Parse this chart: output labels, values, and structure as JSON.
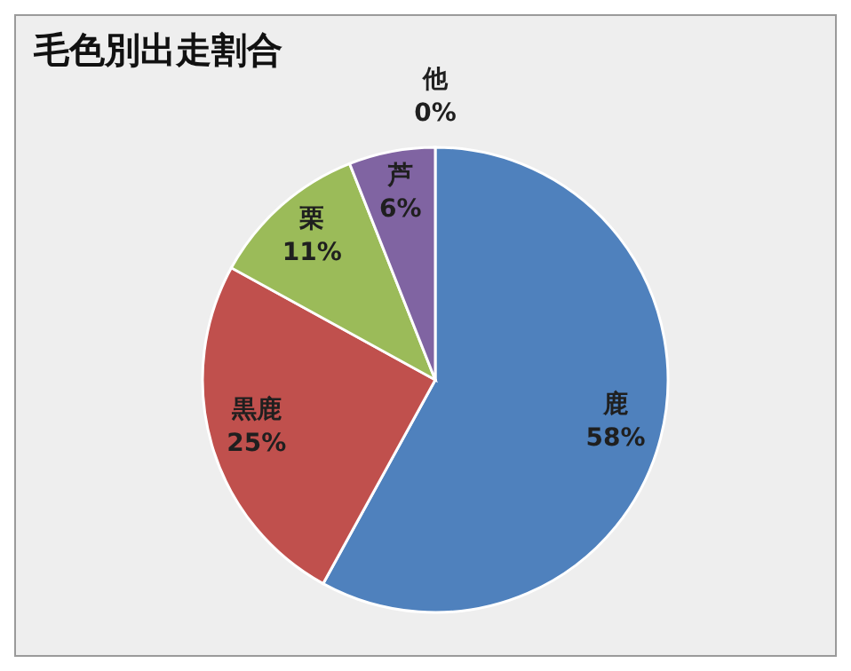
{
  "chart_data": {
    "type": "pie",
    "title": "毛色別出走割合",
    "categories": [
      "鹿",
      "黒鹿",
      "栗",
      "芦",
      "他"
    ],
    "values": [
      58,
      25,
      11,
      6,
      0
    ],
    "value_labels": [
      "58%",
      "25%",
      "11%",
      "6%",
      "0%"
    ],
    "colors": [
      "#4f81bd",
      "#c0504d",
      "#9bbb59",
      "#8064a2",
      "#4bacc6"
    ],
    "legend": false
  }
}
